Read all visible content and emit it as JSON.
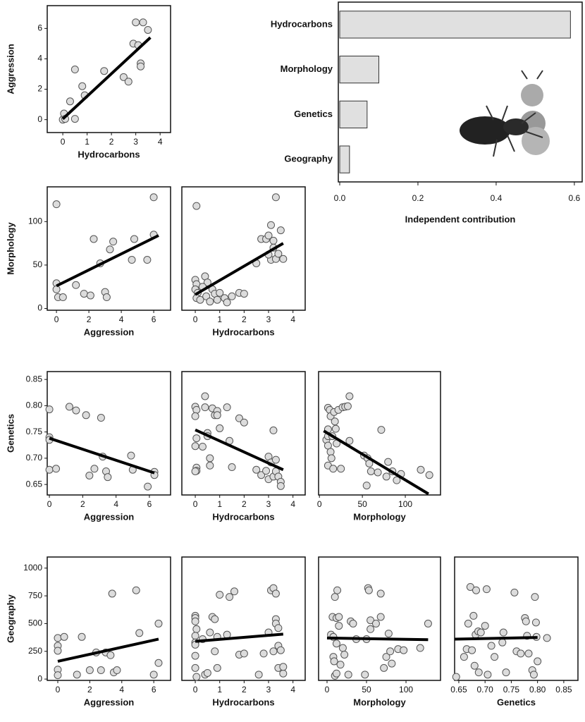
{
  "chart_data": [
    {
      "type": "scatter",
      "xlabel": "Hydrocarbons",
      "ylabel": "Aggression",
      "color": "#dcdcdc",
      "x": [
        0,
        0.05,
        0.1,
        0.3,
        0.5,
        0.5,
        0.8,
        0.9,
        1.7,
        2.5,
        2.7,
        3.0,
        2.9,
        3.2,
        3.2,
        3.3,
        3.5,
        3.1
      ],
      "y": [
        0,
        0.4,
        0.05,
        1.2,
        0.05,
        3.3,
        2.2,
        1.6,
        3.2,
        2.8,
        2.5,
        6.4,
        5.0,
        3.7,
        3.5,
        6.4,
        5.9,
        4.9
      ],
      "fit_x": [
        0,
        3.6
      ],
      "fit_y": [
        0.05,
        5.4
      ],
      "xlim": [
        -0.64,
        4.43
      ],
      "ylim": [
        -0.85,
        7.5
      ],
      "xticks": [
        0,
        1,
        2,
        3,
        4
      ],
      "yticks": [
        0,
        2,
        4,
        6
      ]
    },
    {
      "type": "bar",
      "orientation": "horizontal",
      "xlabel": "Independent contribution",
      "color": "#e0e0e0",
      "categories": [
        "Hydrocarbons",
        "Morphology",
        "Genetics",
        "Geography"
      ],
      "values": [
        0.59,
        0.1,
        0.07,
        0.025
      ],
      "xlim": [
        0,
        0.62
      ],
      "xticks": [
        {
          "value": 0,
          "label": "0.0"
        },
        0.2,
        0.4,
        0.6
      ]
    },
    {
      "type": "scatter",
      "xlabel": "Aggression",
      "ylabel": "Morphology",
      "color": "#dcdcdc",
      "x": [
        0,
        0,
        0,
        0.1,
        0.4,
        1.2,
        1.7,
        2.1,
        2.3,
        2.7,
        3.0,
        3.1,
        3.3,
        3.5,
        4.65,
        4.8,
        5.6,
        6.0,
        6.0
      ],
      "y": [
        120,
        29,
        22,
        13,
        13,
        27,
        17,
        15,
        80,
        52,
        19,
        13,
        68,
        77,
        56,
        80,
        56,
        128,
        85
      ],
      "fit_x": [
        0,
        6.3
      ],
      "fit_y": [
        26,
        84
      ],
      "xlim": [
        -0.57,
        7.04
      ],
      "ylim": [
        -2,
        140
      ],
      "xticks": [
        0,
        2,
        4,
        6
      ],
      "yticks": [
        0,
        50,
        100
      ]
    },
    {
      "type": "scatter",
      "xlabel": "Hydrocarbons",
      "color": "#dcdcdc",
      "x": [
        0.05,
        0,
        0.05,
        0,
        0.1,
        0.05,
        0.2,
        0.4,
        0.5,
        0.3,
        0.45,
        0.6,
        0.7,
        0.8,
        0.9,
        1.0,
        1.2,
        1.3,
        1.5,
        1.8,
        2.0,
        2.5,
        2.7,
        2.9,
        3.0,
        3.1,
        3.2,
        3.3,
        3.2,
        3.1,
        3.3,
        3.5,
        3.6,
        3.4,
        3.0
      ],
      "y": [
        118,
        33,
        28,
        22,
        18,
        12,
        10,
        37,
        30,
        25,
        14,
        8,
        22,
        17,
        10,
        18,
        12,
        7,
        14,
        18,
        17,
        52,
        80,
        80,
        84,
        96,
        78,
        128,
        70,
        56,
        57,
        90,
        57,
        63,
        62
      ],
      "fit_x": [
        0,
        3.6
      ],
      "fit_y": [
        16,
        75
      ],
      "xlim": [
        -0.55,
        4.5
      ],
      "ylim": [
        -2,
        140
      ],
      "xticks": [
        0,
        1,
        2,
        3,
        4
      ]
    },
    {
      "type": "scatter",
      "xlabel": "Aggression",
      "ylabel": "Genetics",
      "color": "#dcdcdc",
      "x": [
        0,
        0,
        0,
        0,
        0.4,
        1.2,
        1.6,
        2.2,
        2.4,
        2.7,
        3.1,
        3.2,
        3.4,
        3.5,
        4.9,
        5.0,
        5.9,
        6.3,
        6.3
      ],
      "y": [
        0.793,
        0.74,
        0.735,
        0.678,
        0.68,
        0.798,
        0.791,
        0.782,
        0.667,
        0.68,
        0.777,
        0.703,
        0.675,
        0.664,
        0.705,
        0.678,
        0.646,
        0.674,
        0.668
      ],
      "fit_x": [
        0,
        6.3
      ],
      "fit_y": [
        0.738,
        0.672
      ],
      "xlim": [
        -0.13,
        7.27
      ],
      "ylim": [
        0.63,
        0.865
      ],
      "xticks": [
        0,
        2,
        4,
        6
      ],
      "yticks": [
        0.65,
        {
          "value": 0.7,
          "label": "0.70"
        },
        0.75,
        {
          "value": 0.8,
          "label": "0.80"
        },
        0.85
      ]
    },
    {
      "type": "scatter",
      "xlabel": "Hydrocarbons",
      "color": "#dcdcdc",
      "x": [
        0,
        0.05,
        0,
        0.05,
        0,
        0.05,
        0.05,
        0,
        0.3,
        0.4,
        0.4,
        0.5,
        0.5,
        0.6,
        0.6,
        0.7,
        0.8,
        0.9,
        1.0,
        0.9,
        1.3,
        1.4,
        1.5,
        1.8,
        2.0,
        2.5,
        2.7,
        2.9,
        3.0,
        3.0,
        3.1,
        3.2,
        3.2,
        3.3,
        3.3,
        3.4,
        3.5,
        3.5
      ],
      "y": [
        0.798,
        0.792,
        0.78,
        0.738,
        0.723,
        0.682,
        0.676,
        0.675,
        0.722,
        0.797,
        0.818,
        0.748,
        0.742,
        0.7,
        0.686,
        0.795,
        0.782,
        0.79,
        0.757,
        0.782,
        0.797,
        0.733,
        0.683,
        0.776,
        0.768,
        0.678,
        0.668,
        0.676,
        0.703,
        0.66,
        0.692,
        0.753,
        0.665,
        0.675,
        0.697,
        0.665,
        0.655,
        0.647
      ],
      "fit_x": [
        0,
        3.6
      ],
      "fit_y": [
        0.754,
        0.678
      ],
      "xlim": [
        -0.55,
        4.5
      ],
      "ylim": [
        0.63,
        0.865
      ],
      "xticks": [
        0,
        1,
        2,
        3,
        4
      ]
    },
    {
      "type": "scatter",
      "xlabel": "Morphology",
      "color": "#dcdcdc",
      "x": [
        8,
        10,
        10,
        10,
        10,
        10,
        12,
        13,
        13,
        14,
        15,
        16,
        17,
        18,
        19,
        20,
        22,
        25,
        27,
        30,
        33,
        35,
        35,
        52,
        55,
        56,
        58,
        60,
        68,
        72,
        78,
        80,
        85,
        90,
        95,
        118,
        128
      ],
      "y": [
        0.735,
        0.796,
        0.755,
        0.742,
        0.724,
        0.686,
        0.792,
        0.78,
        0.712,
        0.7,
        0.742,
        0.68,
        0.788,
        0.77,
        0.756,
        0.728,
        0.792,
        0.68,
        0.797,
        0.798,
        0.799,
        0.818,
        0.733,
        0.705,
        0.648,
        0.7,
        0.69,
        0.675,
        0.673,
        0.754,
        0.665,
        0.693,
        0.675,
        0.658,
        0.67,
        0.678,
        0.668
      ],
      "fit_x": [
        5,
        127
      ],
      "fit_y": [
        0.752,
        0.632
      ],
      "xlim": [
        -1,
        141
      ],
      "ylim": [
        0.63,
        0.865
      ],
      "xticks": [
        0,
        50,
        100
      ]
    },
    {
      "type": "scatter",
      "xlabel": "Aggression",
      "ylabel": "Geography",
      "color": "#dcdcdc",
      "x": [
        0,
        0,
        0,
        0,
        0,
        0.4,
        1.2,
        1.5,
        2,
        2.4,
        2.7,
        3,
        3.3,
        3.4,
        3.5,
        3.7,
        4.9,
        5.1,
        6,
        6.3,
        6.3
      ],
      "y": [
        370,
        300,
        255,
        85,
        35,
        380,
        40,
        380,
        80,
        240,
        80,
        240,
        215,
        770,
        60,
        80,
        800,
        415,
        40,
        500,
        145
      ],
      "fit_x": [
        0,
        6.3
      ],
      "fit_y": [
        160,
        360
      ],
      "xlim": [
        -0.66,
        7.05
      ],
      "ylim": [
        -12,
        1100
      ],
      "xticks": [
        0,
        2,
        4,
        6
      ],
      "yticks": [
        0,
        250,
        500,
        750,
        1000
      ]
    },
    {
      "type": "scatter",
      "xlabel": "Hydrocarbons",
      "color": "#dcdcdc",
      "x": [
        0,
        0,
        0,
        0.05,
        0,
        0,
        0,
        0,
        0,
        0.05,
        0.3,
        0.4,
        0.5,
        0.6,
        0.7,
        0.8,
        0.8,
        0.9,
        0.9,
        1.0,
        1.3,
        1.4,
        1.6,
        1.8,
        2.0,
        2.6,
        2.8,
        3.0,
        3.1,
        3.2,
        3.2,
        3.3,
        3.3,
        3.3,
        3.4,
        3.4,
        3.4,
        3.5,
        3.6,
        3.6
      ],
      "y": [
        570,
        550,
        520,
        450,
        390,
        330,
        310,
        210,
        100,
        20,
        360,
        40,
        55,
        420,
        560,
        540,
        250,
        100,
        380,
        760,
        400,
        740,
        790,
        220,
        230,
        40,
        230,
        420,
        800,
        820,
        250,
        770,
        540,
        500,
        460,
        300,
        100,
        260,
        50,
        110
      ],
      "fit_x": [
        0,
        3.6
      ],
      "fit_y": [
        340,
        405
      ],
      "xlim": [
        -0.55,
        4.5
      ],
      "ylim": [
        -12,
        1100
      ],
      "xticks": [
        0,
        1,
        2,
        3,
        4
      ]
    },
    {
      "type": "scatter",
      "xlabel": "Morphology",
      "color": "#dcdcdc",
      "x": [
        5,
        7,
        8,
        8,
        9,
        10,
        10,
        12,
        12,
        12,
        13,
        15,
        15,
        17,
        20,
        22,
        27,
        30,
        33,
        37,
        48,
        50,
        52,
        53,
        55,
        55,
        62,
        68,
        68,
        72,
        75,
        78,
        80,
        82,
        90,
        97,
        118,
        128
      ],
      "y": [
        400,
        560,
        380,
        200,
        160,
        30,
        740,
        50,
        320,
        550,
        800,
        560,
        480,
        130,
        280,
        220,
        40,
        520,
        500,
        360,
        40,
        360,
        820,
        800,
        530,
        450,
        500,
        560,
        770,
        100,
        200,
        410,
        250,
        140,
        270,
        260,
        280,
        500
      ],
      "fit_x": [
        0,
        128
      ],
      "fit_y": [
        370,
        355
      ],
      "xlim": [
        -10.7,
        143.7
      ],
      "ylim": [
        -12,
        1100
      ],
      "xticks": [
        0,
        50,
        100
      ]
    },
    {
      "type": "scatter",
      "xlabel": "Genetics",
      "color": "#dcdcdc",
      "x": [
        0.645,
        0.66,
        0.665,
        0.668,
        0.672,
        0.675,
        0.678,
        0.68,
        0.682,
        0.683,
        0.687,
        0.688,
        0.692,
        0.7,
        0.703,
        0.705,
        0.712,
        0.718,
        0.733,
        0.735,
        0.74,
        0.756,
        0.76,
        0.768,
        0.776,
        0.778,
        0.78,
        0.783,
        0.79,
        0.793,
        0.795,
        0.797,
        0.798,
        0.8,
        0.818
      ],
      "y": [
        20,
        200,
        270,
        500,
        830,
        260,
        570,
        120,
        400,
        800,
        430,
        60,
        420,
        480,
        810,
        40,
        300,
        200,
        330,
        420,
        60,
        780,
        250,
        230,
        550,
        520,
        390,
        230,
        80,
        40,
        740,
        510,
        380,
        160,
        370
      ],
      "fit_x": [
        0.642,
        0.8
      ],
      "fit_y": [
        360,
        375
      ],
      "xlim": [
        0.642,
        0.877
      ],
      "ylim": [
        -12,
        1100
      ],
      "xticks": [
        0.65,
        {
          "value": 0.7,
          "label": "0.70"
        },
        0.75,
        {
          "value": 0.8,
          "label": "0.80"
        },
        0.85
      ]
    }
  ]
}
